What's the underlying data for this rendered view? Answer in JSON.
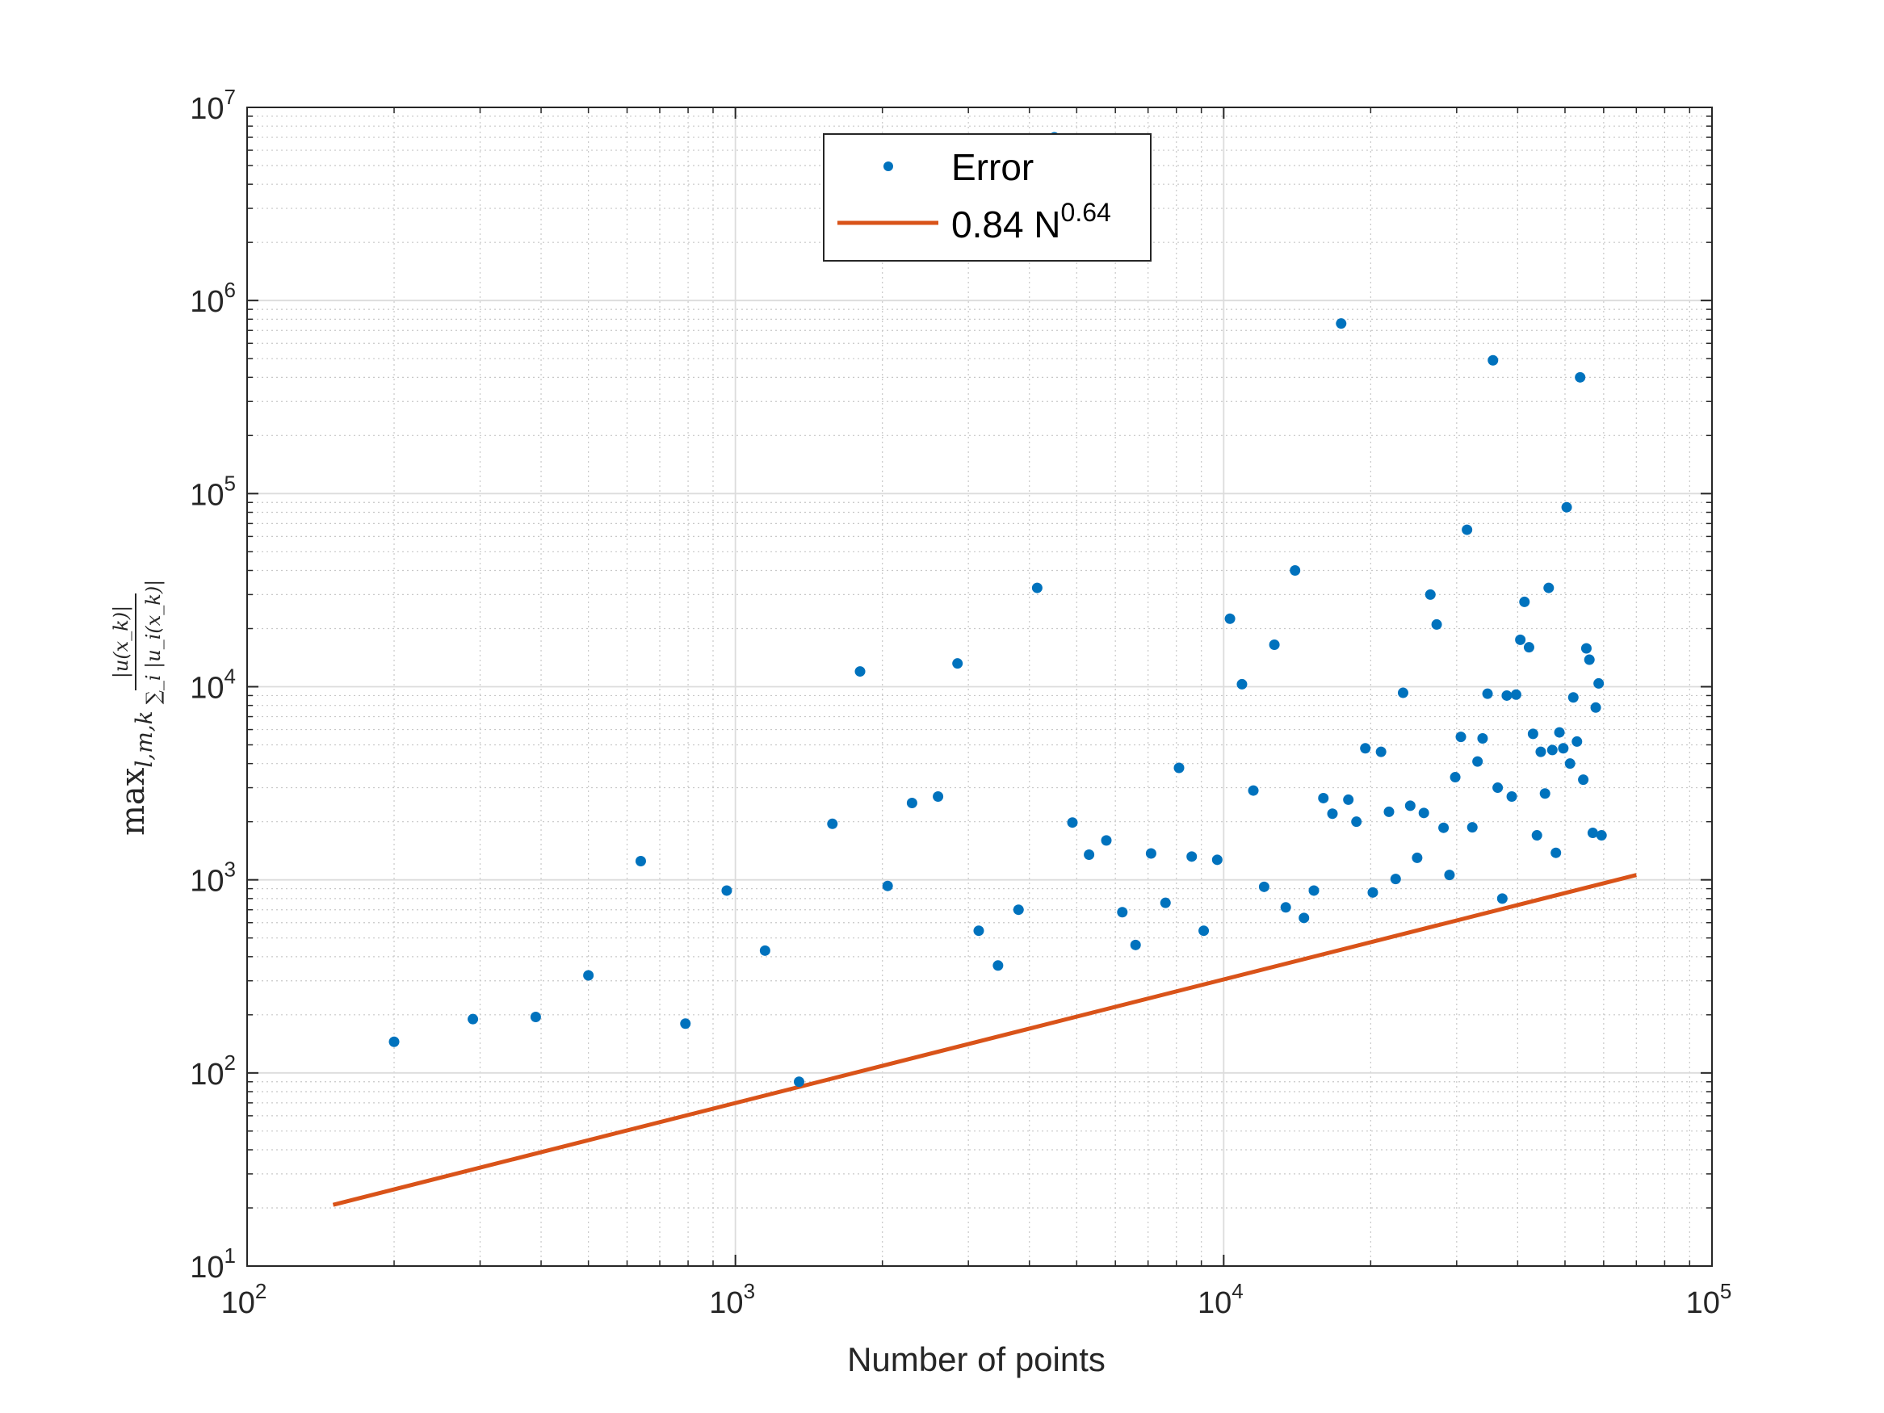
{
  "chart_data": {
    "type": "scatter",
    "xscale": "log",
    "yscale": "log",
    "xlim": [
      100,
      100000
    ],
    "ylim": [
      10,
      10000000
    ],
    "grid": true,
    "minor_grid": true,
    "legend_position": "top-center",
    "xlabel": "Number of points",
    "ylabel": {
      "max_sub": "l,m,k",
      "numerator": "|u(x_k)|",
      "denominator": "∑_i |u_i(x_k)|"
    },
    "x_ticks": [
      {
        "value": 100,
        "base": "10",
        "exp": "2"
      },
      {
        "value": 1000,
        "base": "10",
        "exp": "3"
      },
      {
        "value": 10000,
        "base": "10",
        "exp": "4"
      },
      {
        "value": 100000,
        "base": "10",
        "exp": "5"
      }
    ],
    "y_ticks": [
      {
        "value": 10,
        "base": "10",
        "exp": "1"
      },
      {
        "value": 100,
        "base": "10",
        "exp": "2"
      },
      {
        "value": 1000,
        "base": "10",
        "exp": "3"
      },
      {
        "value": 10000,
        "base": "10",
        "exp": "4"
      },
      {
        "value": 100000,
        "base": "10",
        "exp": "5"
      },
      {
        "value": 1000000,
        "base": "10",
        "exp": "6"
      },
      {
        "value": 10000000,
        "base": "10",
        "exp": "7"
      }
    ],
    "series": [
      {
        "name": "Error",
        "kind": "scatter",
        "color": "#0072BD",
        "points": [
          [
            200,
            145
          ],
          [
            290,
            190
          ],
          [
            390,
            195
          ],
          [
            500,
            320
          ],
          [
            640,
            1250
          ],
          [
            790,
            180
          ],
          [
            960,
            880
          ],
          [
            1150,
            430
          ],
          [
            1350,
            90
          ],
          [
            1580,
            1950
          ],
          [
            1800,
            12000
          ],
          [
            2050,
            930
          ],
          [
            2300,
            2500
          ],
          [
            2600,
            2700
          ],
          [
            2850,
            13200
          ],
          [
            3150,
            545
          ],
          [
            3450,
            360
          ],
          [
            3800,
            700
          ],
          [
            4150,
            32500
          ],
          [
            4500,
            7000000
          ],
          [
            4900,
            1980
          ],
          [
            5300,
            1350
          ],
          [
            5750,
            1600
          ],
          [
            6200,
            680
          ],
          [
            6600,
            460
          ],
          [
            7100,
            1370
          ],
          [
            7600,
            760
          ],
          [
            8100,
            3800
          ],
          [
            8600,
            1320
          ],
          [
            9100,
            545
          ],
          [
            9700,
            1270
          ],
          [
            10300,
            22500
          ],
          [
            10900,
            10300
          ],
          [
            11500,
            2900
          ],
          [
            12100,
            920
          ],
          [
            12700,
            16500
          ],
          [
            13400,
            720
          ],
          [
            14000,
            40000
          ],
          [
            14600,
            635
          ],
          [
            15300,
            880
          ],
          [
            16000,
            2650
          ],
          [
            16700,
            2200
          ],
          [
            17400,
            760000
          ],
          [
            18000,
            2600
          ],
          [
            18700,
            2000
          ],
          [
            19500,
            4800
          ],
          [
            20200,
            860
          ],
          [
            21000,
            4600
          ],
          [
            21800,
            2250
          ],
          [
            22500,
            1010
          ],
          [
            23300,
            9300
          ],
          [
            24100,
            2420
          ],
          [
            24900,
            1300
          ],
          [
            25700,
            2220
          ],
          [
            26500,
            30000
          ],
          [
            27300,
            21000
          ],
          [
            28200,
            1860
          ],
          [
            29000,
            1060
          ],
          [
            29800,
            3400
          ],
          [
            30600,
            5500
          ],
          [
            31500,
            65000
          ],
          [
            32300,
            1870
          ],
          [
            33100,
            4100
          ],
          [
            33900,
            5400
          ],
          [
            34700,
            9200
          ],
          [
            35600,
            490000
          ],
          [
            36400,
            3000
          ],
          [
            37200,
            800
          ],
          [
            38000,
            9000
          ],
          [
            38900,
            2700
          ],
          [
            39700,
            9100
          ],
          [
            40500,
            17500
          ],
          [
            41300,
            27500
          ],
          [
            42200,
            16000
          ],
          [
            43000,
            5700
          ],
          [
            43800,
            1700
          ],
          [
            44600,
            4600
          ],
          [
            45500,
            2800
          ],
          [
            46300,
            32500
          ],
          [
            47100,
            4700
          ],
          [
            47900,
            1380
          ],
          [
            48700,
            5800
          ],
          [
            49600,
            4800
          ],
          [
            50400,
            85000
          ],
          [
            51200,
            4000
          ],
          [
            52000,
            8800
          ],
          [
            52900,
            5200
          ],
          [
            53700,
            400000
          ],
          [
            54500,
            3300
          ],
          [
            55300,
            15800
          ],
          [
            56100,
            13800
          ],
          [
            57000,
            1750
          ],
          [
            57800,
            7800
          ],
          [
            58600,
            10400
          ],
          [
            59400,
            1700
          ]
        ]
      },
      {
        "name": "0.84 N",
        "name_exponent": "0.64",
        "kind": "line",
        "color": "#D95319",
        "coefficient": 0.84,
        "exponent": 0.64,
        "x_range": [
          150,
          70000
        ]
      }
    ]
  }
}
